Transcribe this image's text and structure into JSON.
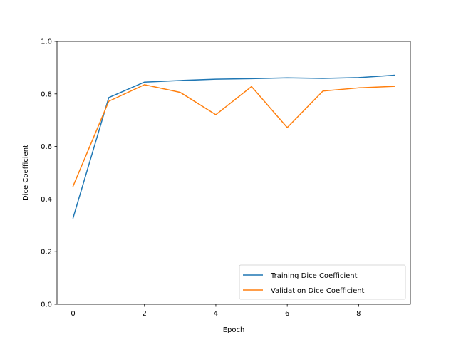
{
  "chart_data": {
    "type": "line",
    "title": "",
    "xlabel": "Epoch",
    "ylabel": "Dice Coefficient",
    "xlim": [
      -0.45,
      9.45
    ],
    "ylim": [
      0.0,
      1.0
    ],
    "x_ticks": [
      "0",
      "2",
      "4",
      "6",
      "8"
    ],
    "x_tick_values": [
      0,
      2,
      4,
      6,
      8
    ],
    "y_ticks": [
      "0.0",
      "0.2",
      "0.4",
      "0.6",
      "0.8",
      "1.0"
    ],
    "y_tick_values": [
      0.0,
      0.2,
      0.4,
      0.6,
      0.8,
      1.0
    ],
    "grid": false,
    "legend_position": "lower-right",
    "x": [
      0,
      1,
      2,
      3,
      4,
      5,
      6,
      7,
      8,
      9
    ],
    "series": [
      {
        "name": "Training Dice Coefficient",
        "color": "#1f77b4",
        "values": [
          0.328,
          0.786,
          0.845,
          0.851,
          0.856,
          0.858,
          0.861,
          0.859,
          0.862,
          0.871
        ]
      },
      {
        "name": "Validation Dice Coefficient",
        "color": "#ff7f0e",
        "values": [
          0.449,
          0.772,
          0.835,
          0.806,
          0.721,
          0.828,
          0.672,
          0.811,
          0.823,
          0.829
        ]
      }
    ]
  }
}
